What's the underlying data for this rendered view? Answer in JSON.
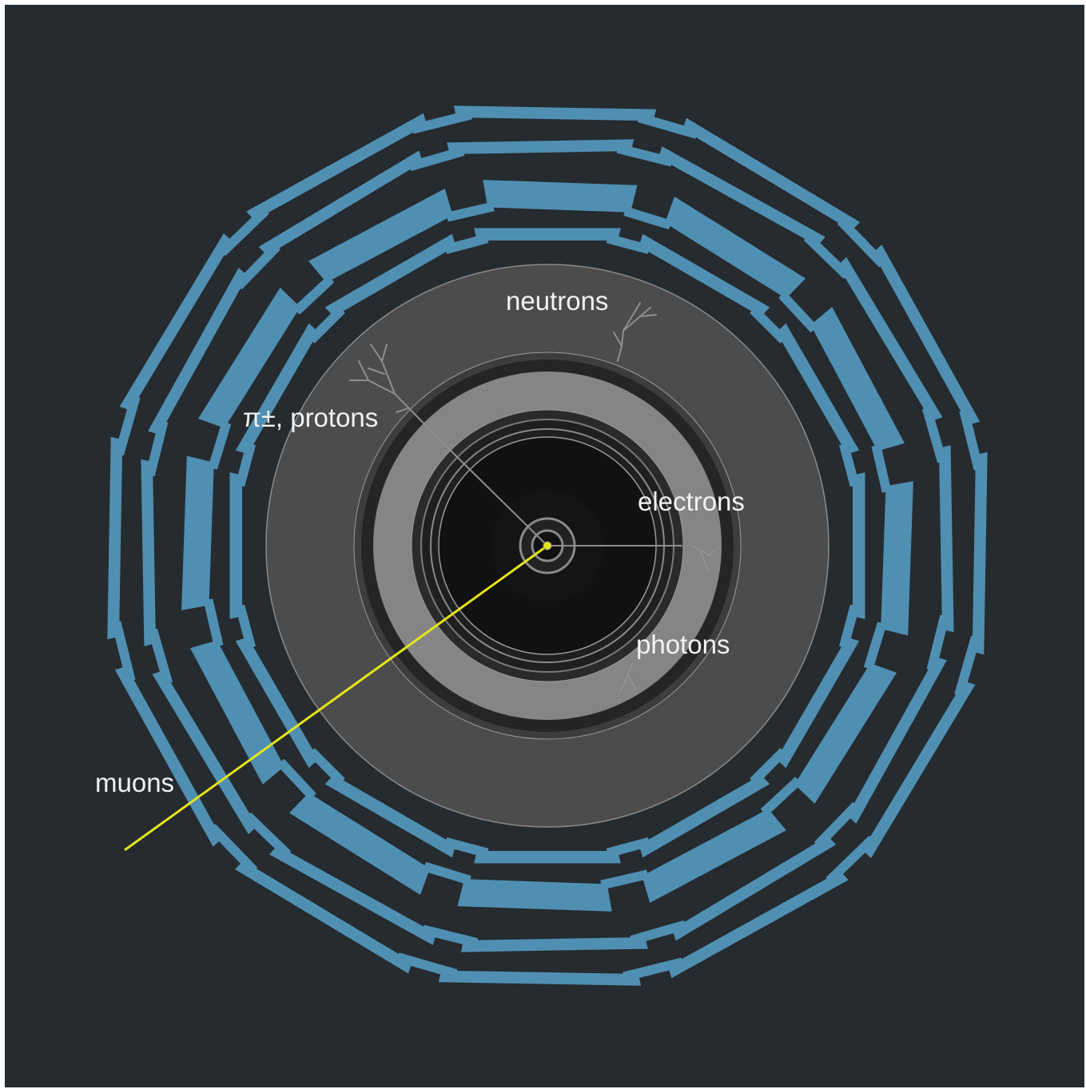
{
  "diagram": {
    "labels": {
      "neutrons": "neutrons",
      "pions_protons": "π±, protons",
      "electrons": "electrons",
      "photons": "photons",
      "muons": "muons"
    },
    "colors": {
      "background": "#262b2f",
      "muon_chambers": "#4f8fb2",
      "hadron_calorimeter": "#4c4c4c",
      "em_calorimeter": "#858585",
      "tracker": "#111111",
      "muon_track": "#e5e51a",
      "particle_tracks": "#8e8e8e",
      "label_text": "#f2f2f2"
    }
  }
}
